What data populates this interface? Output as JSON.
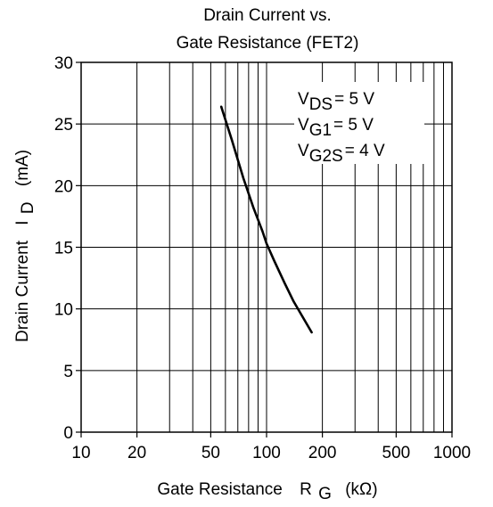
{
  "chart_data": {
    "type": "line",
    "title": [
      "Drain Current vs.",
      "Gate Resistance (FET2)"
    ],
    "xlabel": {
      "main": "Gate Resistance",
      "symbol": "R",
      "sub": "G",
      "unit": "(kΩ)"
    },
    "ylabel": {
      "main": "Drain  Current",
      "symbol": "I",
      "sub": "D",
      "unit": "(mA)"
    },
    "xscale": "log",
    "xlim": [
      10,
      1000
    ],
    "ylim": [
      0,
      30
    ],
    "x_tick_labels": [
      "10",
      "20",
      "50",
      "100",
      "200",
      "500",
      "1000"
    ],
    "y_tick_labels": [
      "0",
      "5",
      "10",
      "15",
      "20",
      "25",
      "30"
    ],
    "grid": true,
    "series": [
      {
        "color": "#000000",
        "x": [
          57,
          65,
          75,
          85,
          95,
          100,
          110,
          125,
          140,
          160,
          175
        ],
        "y": [
          26.4,
          23.7,
          20.6,
          18.2,
          16.3,
          15.3,
          13.9,
          12.1,
          10.6,
          9.1,
          8.1
        ]
      }
    ],
    "annotations": [
      {
        "symbol": "V",
        "sub": "DS",
        "value": "= 5 V"
      },
      {
        "symbol": "V",
        "sub": "G1",
        "value": "= 5 V"
      },
      {
        "symbol": "V",
        "sub": "G2S",
        "value": "= 4 V"
      }
    ]
  }
}
